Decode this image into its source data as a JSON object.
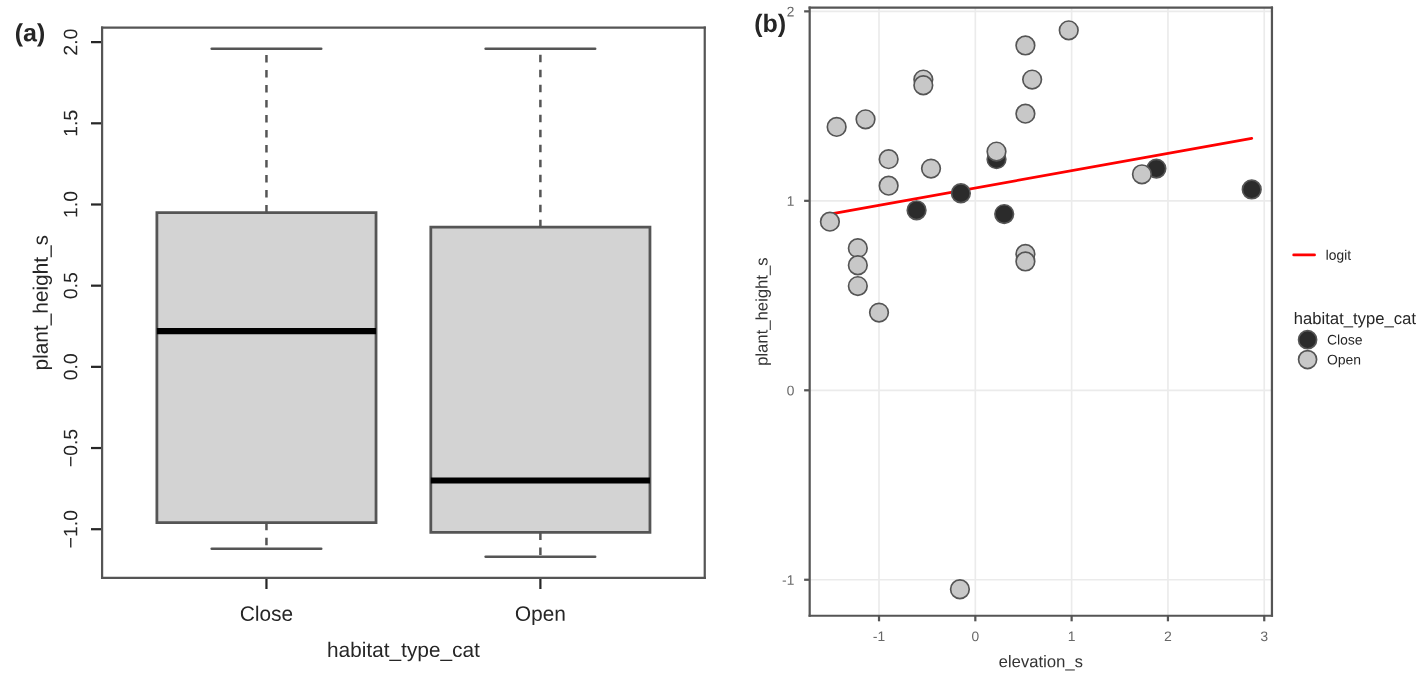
{
  "chart_data": [
    {
      "type": "box",
      "title": "(a)",
      "xlabel": "habitat_type_cat",
      "ylabel": "plant_height_s",
      "categories": [
        "Close",
        "Open"
      ],
      "series": [
        {
          "color": "#d3d3d3",
          "boxes": [
            {
              "low": -1.12,
              "q1": -0.96,
              "median": 0.22,
              "q3": 0.95,
              "high": 1.96
            },
            {
              "low": -1.17,
              "q1": -1.02,
              "median": -0.7,
              "q3": 0.86,
              "high": 1.96
            }
          ]
        }
      ],
      "ylim": [
        -1.3,
        2.09
      ],
      "yticks": [
        {
          "value": -1,
          "label": "−1.0"
        },
        {
          "value": -0.5,
          "label": "−0.5"
        },
        {
          "value": 0,
          "label": "0.0"
        },
        {
          "value": 0.5,
          "label": "0.5"
        },
        {
          "value": 1,
          "label": "1.0"
        },
        {
          "value": 1.5,
          "label": "1.5"
        },
        {
          "value": 2,
          "label": "2.0"
        }
      ],
      "grid": false
    },
    {
      "type": "scatter",
      "title": "(b)",
      "xlabel": "elevation_s",
      "ylabel": "plant_height_s",
      "legend_title": "habitat_type_cat",
      "xlim": [
        -1.72,
        3.08
      ],
      "xticks": [
        -1,
        0,
        1,
        2,
        3
      ],
      "ylim": [
        -1.19,
        2.02
      ],
      "yticks": [
        -1,
        0,
        1,
        2
      ],
      "grid": true,
      "legend": "right",
      "series": [
        {
          "name": "logit",
          "type": "line",
          "color": "#ff0000",
          "line_style": "solid",
          "x": [
            -1.51,
            2.87
          ],
          "values": [
            0.93,
            1.33
          ]
        },
        {
          "name": "Close",
          "color": "#2b2b2b",
          "marker": "circle",
          "x": [
            -0.61,
            -0.15,
            0.22,
            0.3,
            1.88,
            2.87
          ],
          "values": [
            0.95,
            1.04,
            1.22,
            0.93,
            1.17,
            1.06
          ]
        },
        {
          "name": "Open",
          "color": "#c8c8c8",
          "marker": "circle",
          "x": [
            -1.44,
            -1.14,
            -0.9,
            -0.9,
            -1.51,
            -1.22,
            -1.22,
            -1.22,
            -1.0,
            -0.54,
            -0.54,
            -0.46,
            0.22,
            0.52,
            0.59,
            0.52,
            0.52,
            0.52,
            0.97,
            -0.16,
            1.73
          ],
          "values": [
            1.39,
            1.43,
            1.22,
            1.08,
            0.89,
            0.75,
            0.66,
            0.55,
            0.41,
            1.64,
            1.61,
            1.17,
            1.26,
            1.82,
            1.64,
            1.46,
            0.72,
            0.68,
            1.9,
            -1.05,
            1.14
          ]
        }
      ]
    }
  ]
}
